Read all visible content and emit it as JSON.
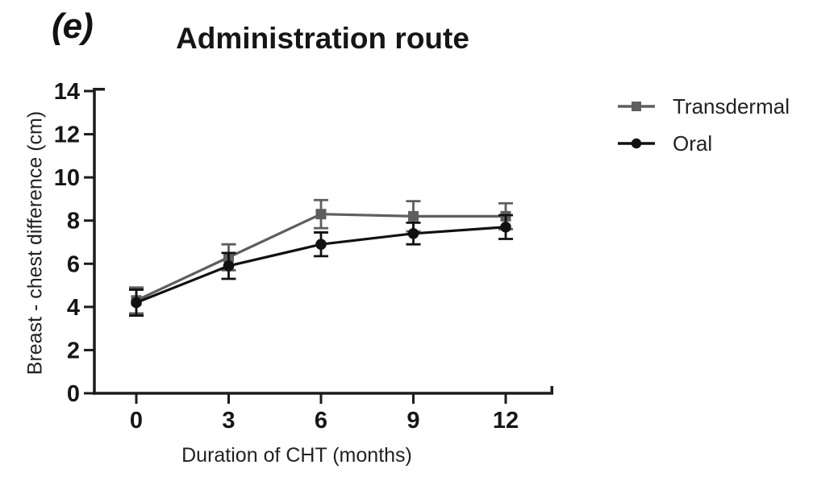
{
  "figure": {
    "panel_label": "(e)",
    "background_color": "#ffffff",
    "axis_color": "#1c1c1c",
    "tick_label_color": "#161616"
  },
  "chart_data": {
    "type": "line",
    "title": "Administration route",
    "xlabel": "Duration of CHT (months)",
    "ylabel": "Breast - chest difference (cm)",
    "x": [
      0,
      3,
      6,
      9,
      12
    ],
    "xticks": [
      0,
      3,
      6,
      9,
      12
    ],
    "yticks": [
      0,
      2,
      4,
      6,
      8,
      10,
      12,
      14
    ],
    "xlim": [
      0,
      12
    ],
    "ylim": [
      0,
      14
    ],
    "grid": false,
    "legend_position": "right-top",
    "error_bars": true,
    "series": [
      {
        "name": "Transdermal",
        "marker": "square",
        "color": "#5e5e5e",
        "values": [
          4.3,
          6.3,
          8.3,
          8.2,
          8.2
        ],
        "errors": [
          0.6,
          0.6,
          0.65,
          0.7,
          0.6
        ]
      },
      {
        "name": "Oral",
        "marker": "circle",
        "color": "#111111",
        "values": [
          4.2,
          5.9,
          6.9,
          7.4,
          7.7
        ],
        "errors": [
          0.6,
          0.6,
          0.55,
          0.5,
          0.55
        ]
      }
    ]
  }
}
